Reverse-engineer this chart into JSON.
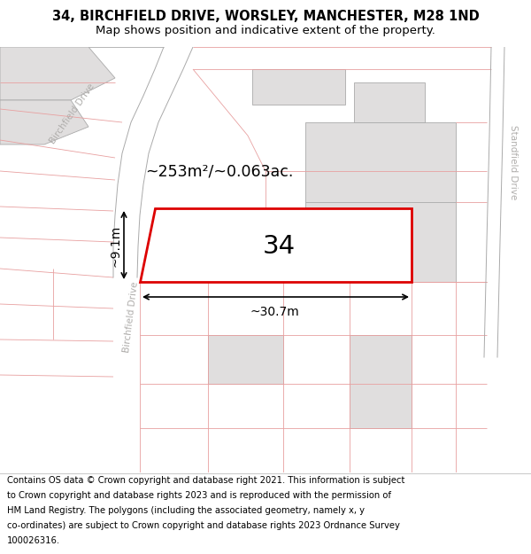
{
  "title": "34, BIRCHFIELD DRIVE, WORSLEY, MANCHESTER, M28 1ND",
  "subtitle": "Map shows position and indicative extent of the property.",
  "area_label": "~253m²/~0.063ac.",
  "number_label": "34",
  "dim_width": "~30.7m",
  "dim_height": "~9.1m",
  "red_outline": "#dd0000",
  "plot_line_color": "#e8a0a0",
  "road_line_color": "#aaaaaa",
  "gray_fill": "#e0dede",
  "title_fontsize": 10.5,
  "subtitle_fontsize": 9.5,
  "footer_fontsize": 7.2,
  "footer_lines": [
    "Contains OS data © Crown copyright and database right 2021. This information is subject",
    "to Crown copyright and database rights 2023 and is reproduced with the permission of",
    "HM Land Registry. The polygons (including the associated geometry, namely x, y",
    "co-ordinates) are subject to Crown copyright and database rights 2023 Ordnance Survey",
    "100026316."
  ]
}
